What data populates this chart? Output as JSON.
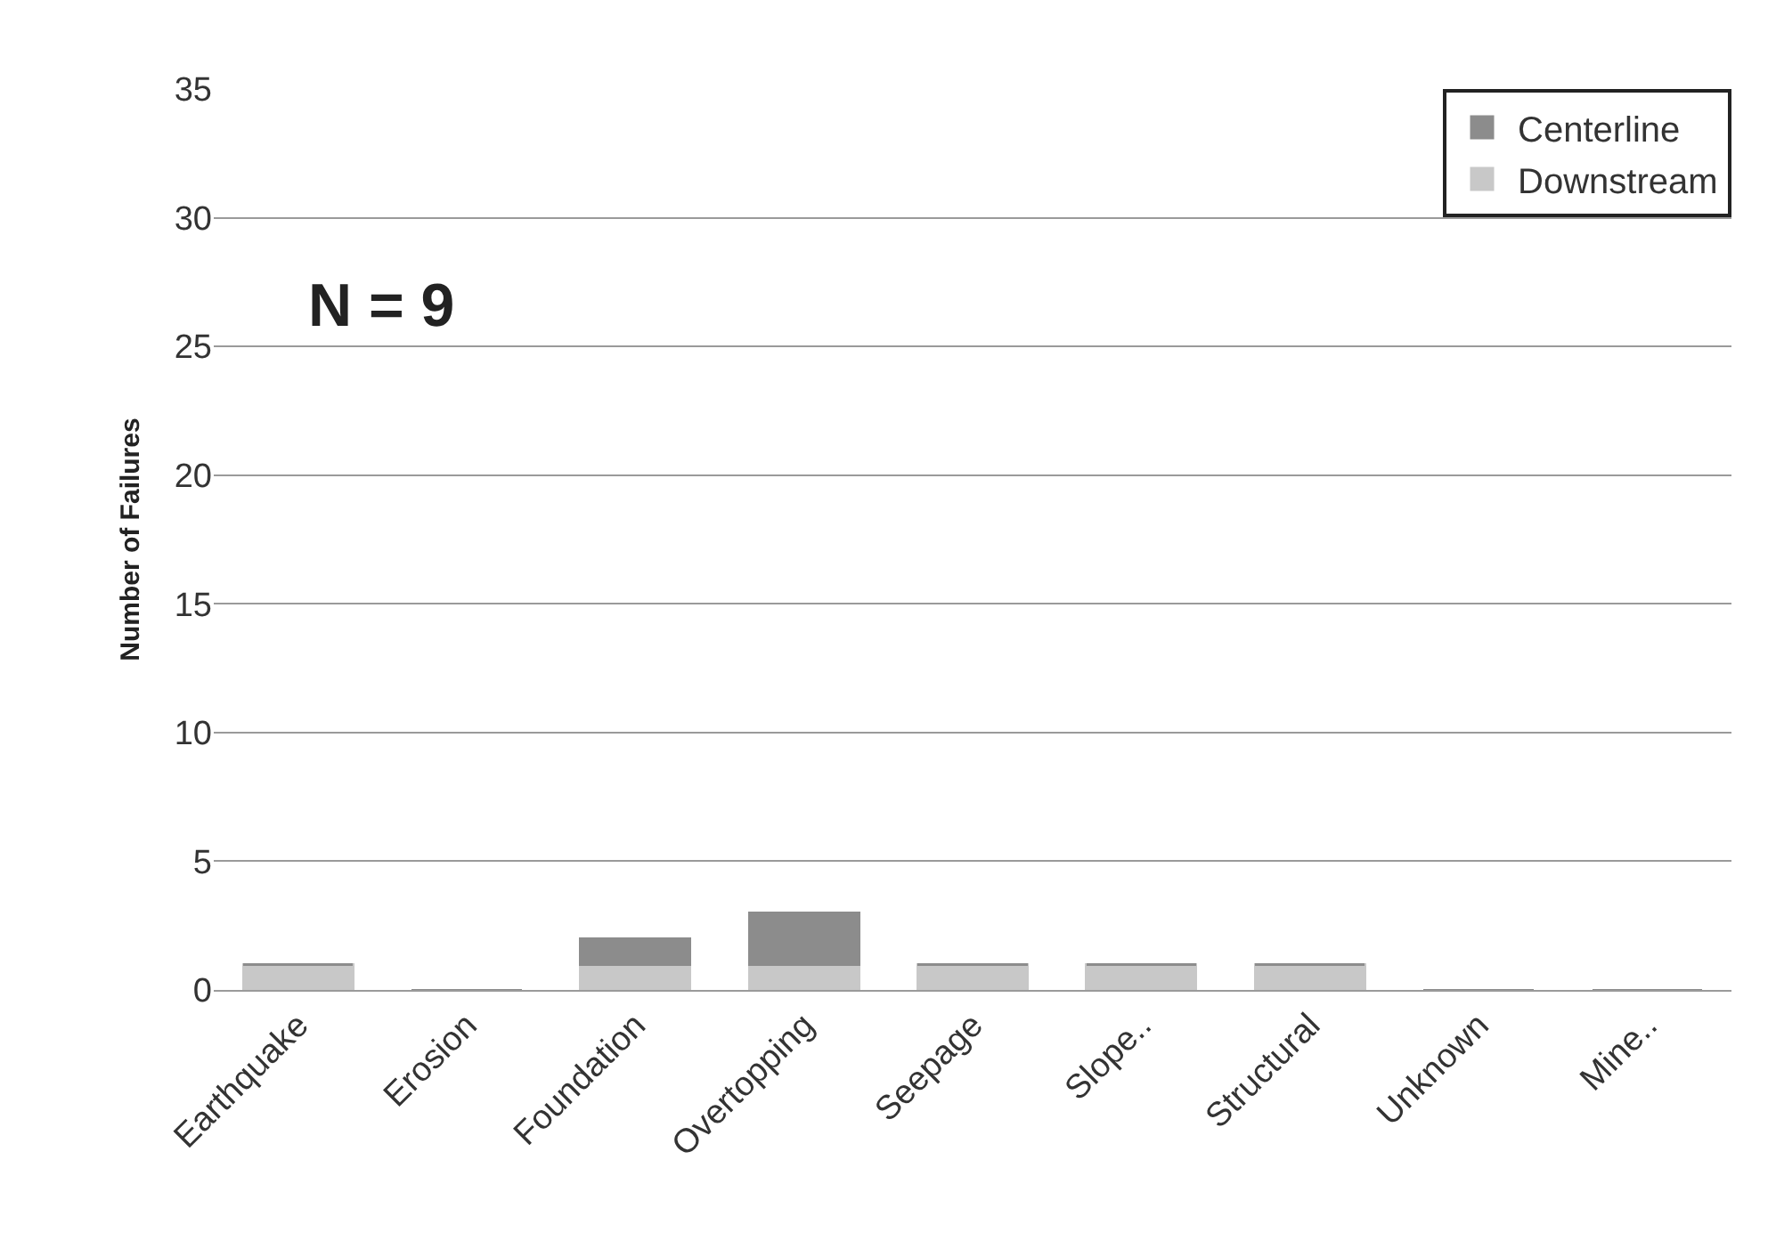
{
  "chart_data": {
    "type": "bar",
    "stacked": true,
    "ylabel": "Number of Failures",
    "categories": [
      "Earthquake",
      "Erosion",
      "Foundation",
      "Overtopping",
      "Seepage",
      "Slope..",
      "Structural",
      "Unknown",
      "Mine.."
    ],
    "series": [
      {
        "name": "Downstream",
        "color": "#c8c8c8",
        "values": [
          1,
          0,
          1,
          1,
          1,
          1,
          1,
          0,
          0
        ]
      },
      {
        "name": "Centerline",
        "color": "#8c8c8c",
        "values": [
          0,
          0,
          1,
          2,
          0,
          0,
          0,
          0,
          0
        ]
      }
    ],
    "ylim": [
      0,
      35
    ],
    "yticks": [
      0,
      5,
      10,
      15,
      20,
      25,
      30,
      35
    ],
    "grid": "y",
    "legend": "top right",
    "annotations": [
      "N = 9"
    ]
  }
}
